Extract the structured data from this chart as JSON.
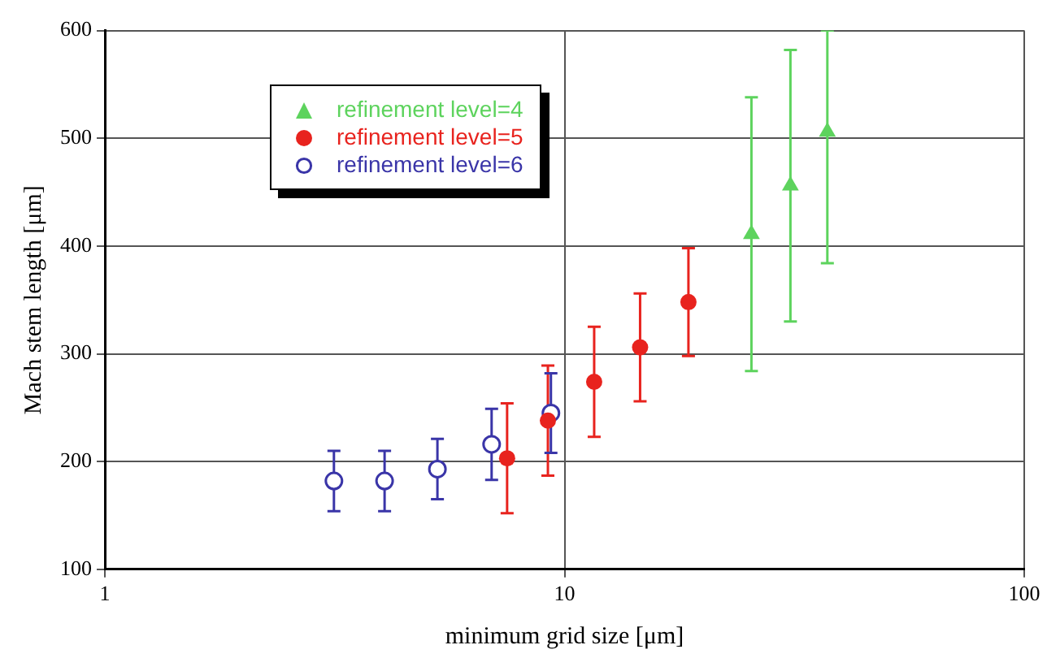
{
  "chart_data": {
    "type": "scatter",
    "xlabel": "minimum grid size [μm]",
    "ylabel": "Mach stem length [μm]",
    "log": "x",
    "xlim": [
      1,
      100
    ],
    "xticks": [
      1,
      10,
      100
    ],
    "ylim": [
      100,
      600
    ],
    "yticks": [
      100,
      200,
      300,
      400,
      500,
      600
    ],
    "grid": true,
    "legend": "top left",
    "series": [
      {
        "name": "refinement level=4",
        "color": "#5dd35d",
        "marker": "triangle",
        "x": [
          25.5,
          31.0,
          37.3
        ],
        "values": [
          411,
          456,
          506
        ],
        "errors": [
          127,
          126,
          [
            384,
            600
          ]
        ]
      },
      {
        "name": "refinement level=5",
        "color": "#e8231e",
        "marker": "circle",
        "x": [
          7.5,
          9.2,
          11.6,
          14.6,
          18.6
        ],
        "values": [
          203,
          238,
          274,
          306,
          348
        ],
        "errors": [
          51,
          51,
          51,
          50,
          50
        ]
      },
      {
        "name": "refinement level=6",
        "color": "#3a35a8",
        "marker": "circle_open",
        "x": [
          3.15,
          4.06,
          5.29,
          6.94,
          9.34
        ],
        "values": [
          182,
          182,
          193,
          216,
          245
        ],
        "errors": [
          28,
          28,
          28,
          33,
          37
        ]
      }
    ]
  }
}
